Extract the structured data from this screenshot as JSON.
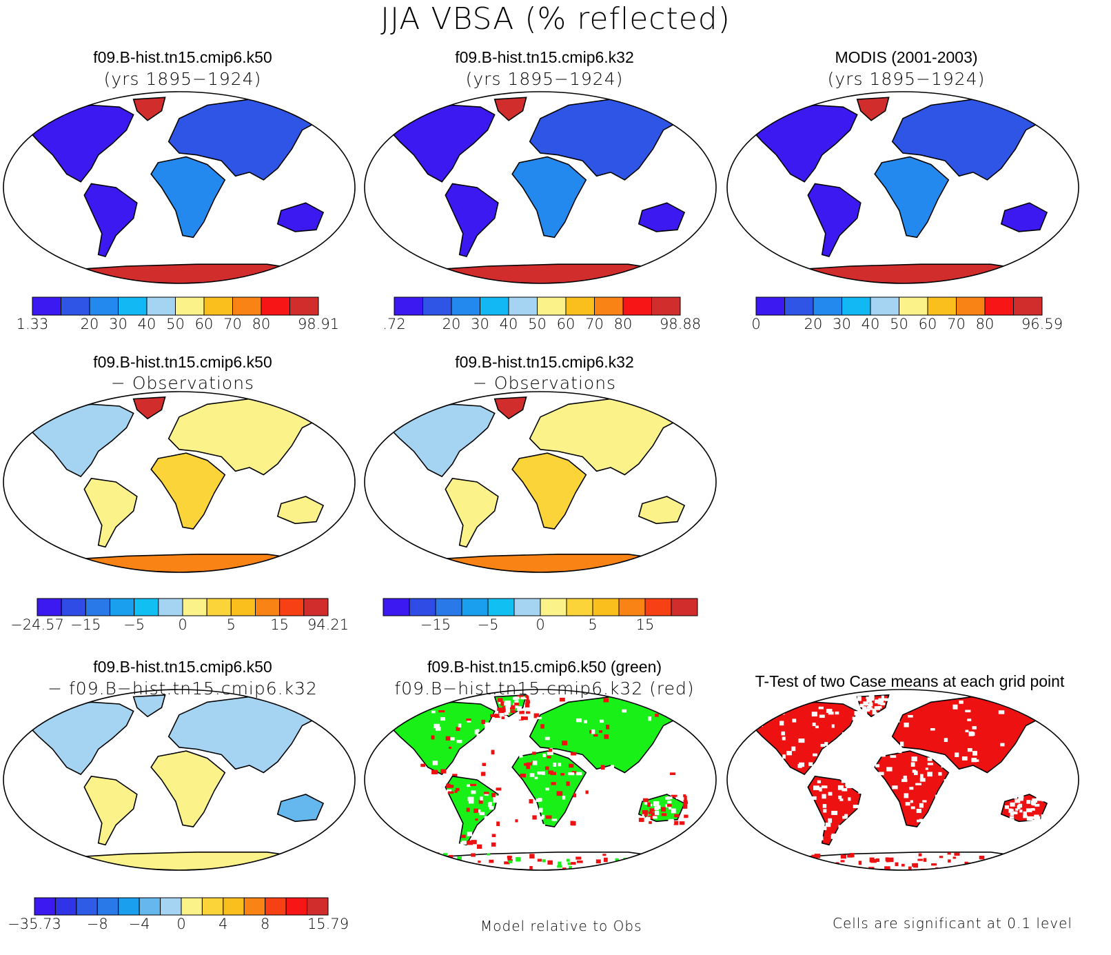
{
  "title": "JJA VBSA (% reflected)",
  "colors": {
    "scale10": [
      "#3b19f0",
      "#2e55e6",
      "#2489ee",
      "#12b8f3",
      "#a4d4f2",
      "#fbf38a",
      "#fbbf1d",
      "#f98315",
      "#f81515",
      "#d22d2d"
    ],
    "scale12": [
      "#3b19f0",
      "#2f4de6",
      "#2a79e8",
      "#1a9eee",
      "#12bff2",
      "#a4d4f2",
      "#fbf38a",
      "#fbd43a",
      "#fbbf1d",
      "#f98315",
      "#f84015",
      "#d22d2d"
    ],
    "scale13": [
      "#3b19f0",
      "#2f35e6",
      "#2f5ce6",
      "#2a79e8",
      "#1a9eee",
      "#64b8ee",
      "#a4d4f2",
      "#fbf38a",
      "#fbd43a",
      "#fbbf1d",
      "#f98315",
      "#f84015",
      "#f81515",
      "#d22d2d"
    ],
    "green": "#18f018",
    "red": "#ee1111"
  },
  "panels": [
    {
      "id": "k50-mean",
      "line1": "f09.B-hist.tn15.cmip6.k50",
      "line2": "(yrs 1895−1924)",
      "style": "mean",
      "colorbar": {
        "scale": "scale10",
        "ticks": [
          "1.33",
          "20",
          "30",
          "40",
          "50",
          "60",
          "70",
          "80",
          "98.91"
        ]
      }
    },
    {
      "id": "k32-mean",
      "line1": "f09.B-hist.tn15.cmip6.k32",
      "line2": "(yrs 1895−1924)",
      "style": "mean",
      "colorbar": {
        "scale": "scale10",
        "ticks": [
          ".72",
          "20",
          "30",
          "40",
          "50",
          "60",
          "70",
          "80",
          "98.88"
        ]
      }
    },
    {
      "id": "modis-mean",
      "line1": "MODIS (2001-2003)",
      "line2": "(yrs 1895−1924)",
      "style": "mean",
      "colorbar": {
        "scale": "scale10",
        "ticks": [
          "0",
          "20",
          "30",
          "40",
          "50",
          "60",
          "70",
          "80",
          "96.59"
        ]
      }
    },
    {
      "id": "k50-obs",
      "line1": "f09.B-hist.tn15.cmip6.k50",
      "line2": "− Observations",
      "style": "diff",
      "colorbar": {
        "scale": "scale12",
        "ticks": [
          "−24.57",
          "−15",
          "−5",
          "0",
          "5",
          "15",
          "94.21"
        ]
      }
    },
    {
      "id": "k32-obs",
      "line1": "f09.B-hist.tn15.cmip6.k32",
      "line2": "− Observations",
      "style": "diff",
      "colorbar": {
        "scale": "scale12",
        "ticks": [
          "−15",
          "−5",
          "0",
          "5",
          "15"
        ]
      }
    },
    {
      "id": "k50-k32",
      "line1": "f09.B-hist.tn15.cmip6.k50",
      "line2": "− f09.B−hist.tn15.cmip6.k32",
      "style": "diff2",
      "colorbar": {
        "scale": "scale13",
        "ticks": [
          "−35.73",
          "−8",
          "−4",
          "0",
          "4",
          "8",
          "15.79"
        ]
      }
    },
    {
      "id": "green-red",
      "line1": "f09.B-hist.tn15.cmip6.k50 (green)",
      "line2": "f09.B−hist.tn15.cmip6.k32 (red)",
      "style": "greenred",
      "note": "Model relative to Obs"
    },
    {
      "id": "ttest",
      "line1": "T-Test of two Case means at each grid point",
      "line2": "",
      "style": "ttest",
      "note": "Cells are significant at 0.1 level"
    }
  ]
}
